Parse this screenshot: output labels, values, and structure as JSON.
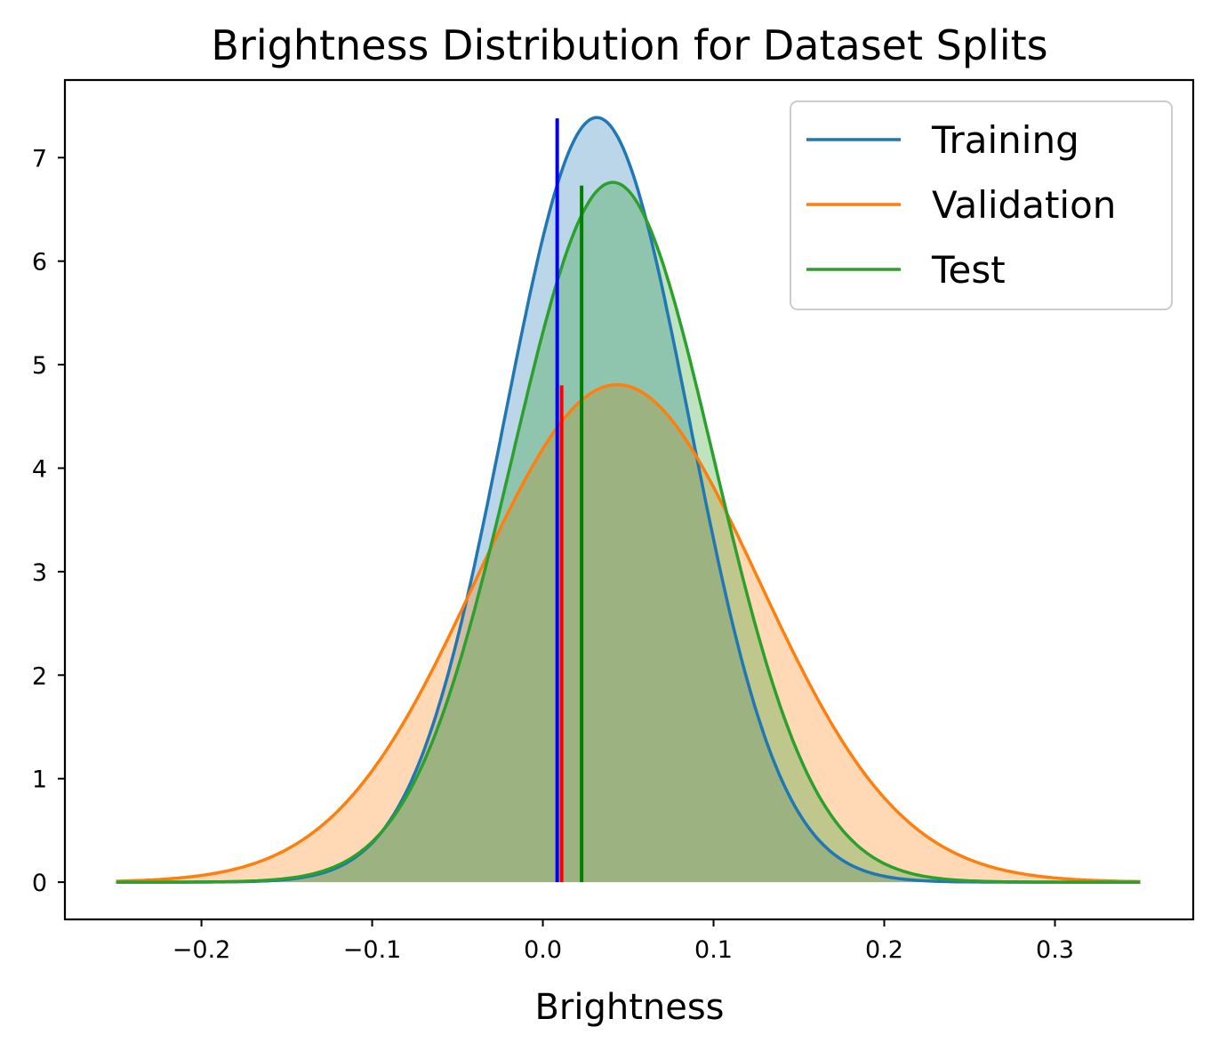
{
  "chart_data": {
    "type": "area",
    "title": "Brightness Distribution for Dataset Splits",
    "xlabel": "Brightness",
    "ylabel": "",
    "xlim": [
      -0.28,
      0.381
    ],
    "ylim": [
      -0.36,
      7.75
    ],
    "x_range": [
      -0.25,
      0.35
    ],
    "xticks": [
      -0.2,
      -0.1,
      0.0,
      0.1,
      0.2,
      0.3
    ],
    "xtick_labels": [
      "−0.2",
      "−0.1",
      "0.0",
      "0.1",
      "0.2",
      "0.3"
    ],
    "yticks": [
      0,
      1,
      2,
      3,
      4,
      5,
      6,
      7
    ],
    "ytick_labels": [
      "0",
      "1",
      "2",
      "3",
      "4",
      "5",
      "6",
      "7"
    ],
    "grid": false,
    "legend_position": "top-right",
    "series": [
      {
        "name": "Training",
        "distribution": "normal",
        "mean": 0.0316,
        "std": 0.054,
        "color": "#1f77b4",
        "fill_alpha": 0.3
      },
      {
        "name": "Validation",
        "distribution": "normal",
        "mean": 0.0436,
        "std": 0.083,
        "color": "#ff7f0e",
        "fill_alpha": 0.3
      },
      {
        "name": "Test",
        "distribution": "normal",
        "mean": 0.041,
        "std": 0.059,
        "color": "#2ca02c",
        "fill_alpha": 0.3
      }
    ],
    "vertical_lines": [
      {
        "x": 0.0084,
        "ymax": 7.38,
        "color": "#0000ff"
      },
      {
        "x": 0.011,
        "ymax": 4.8,
        "color": "#ff0000"
      },
      {
        "x": 0.0227,
        "ymax": 6.73,
        "color": "#008000"
      }
    ]
  }
}
